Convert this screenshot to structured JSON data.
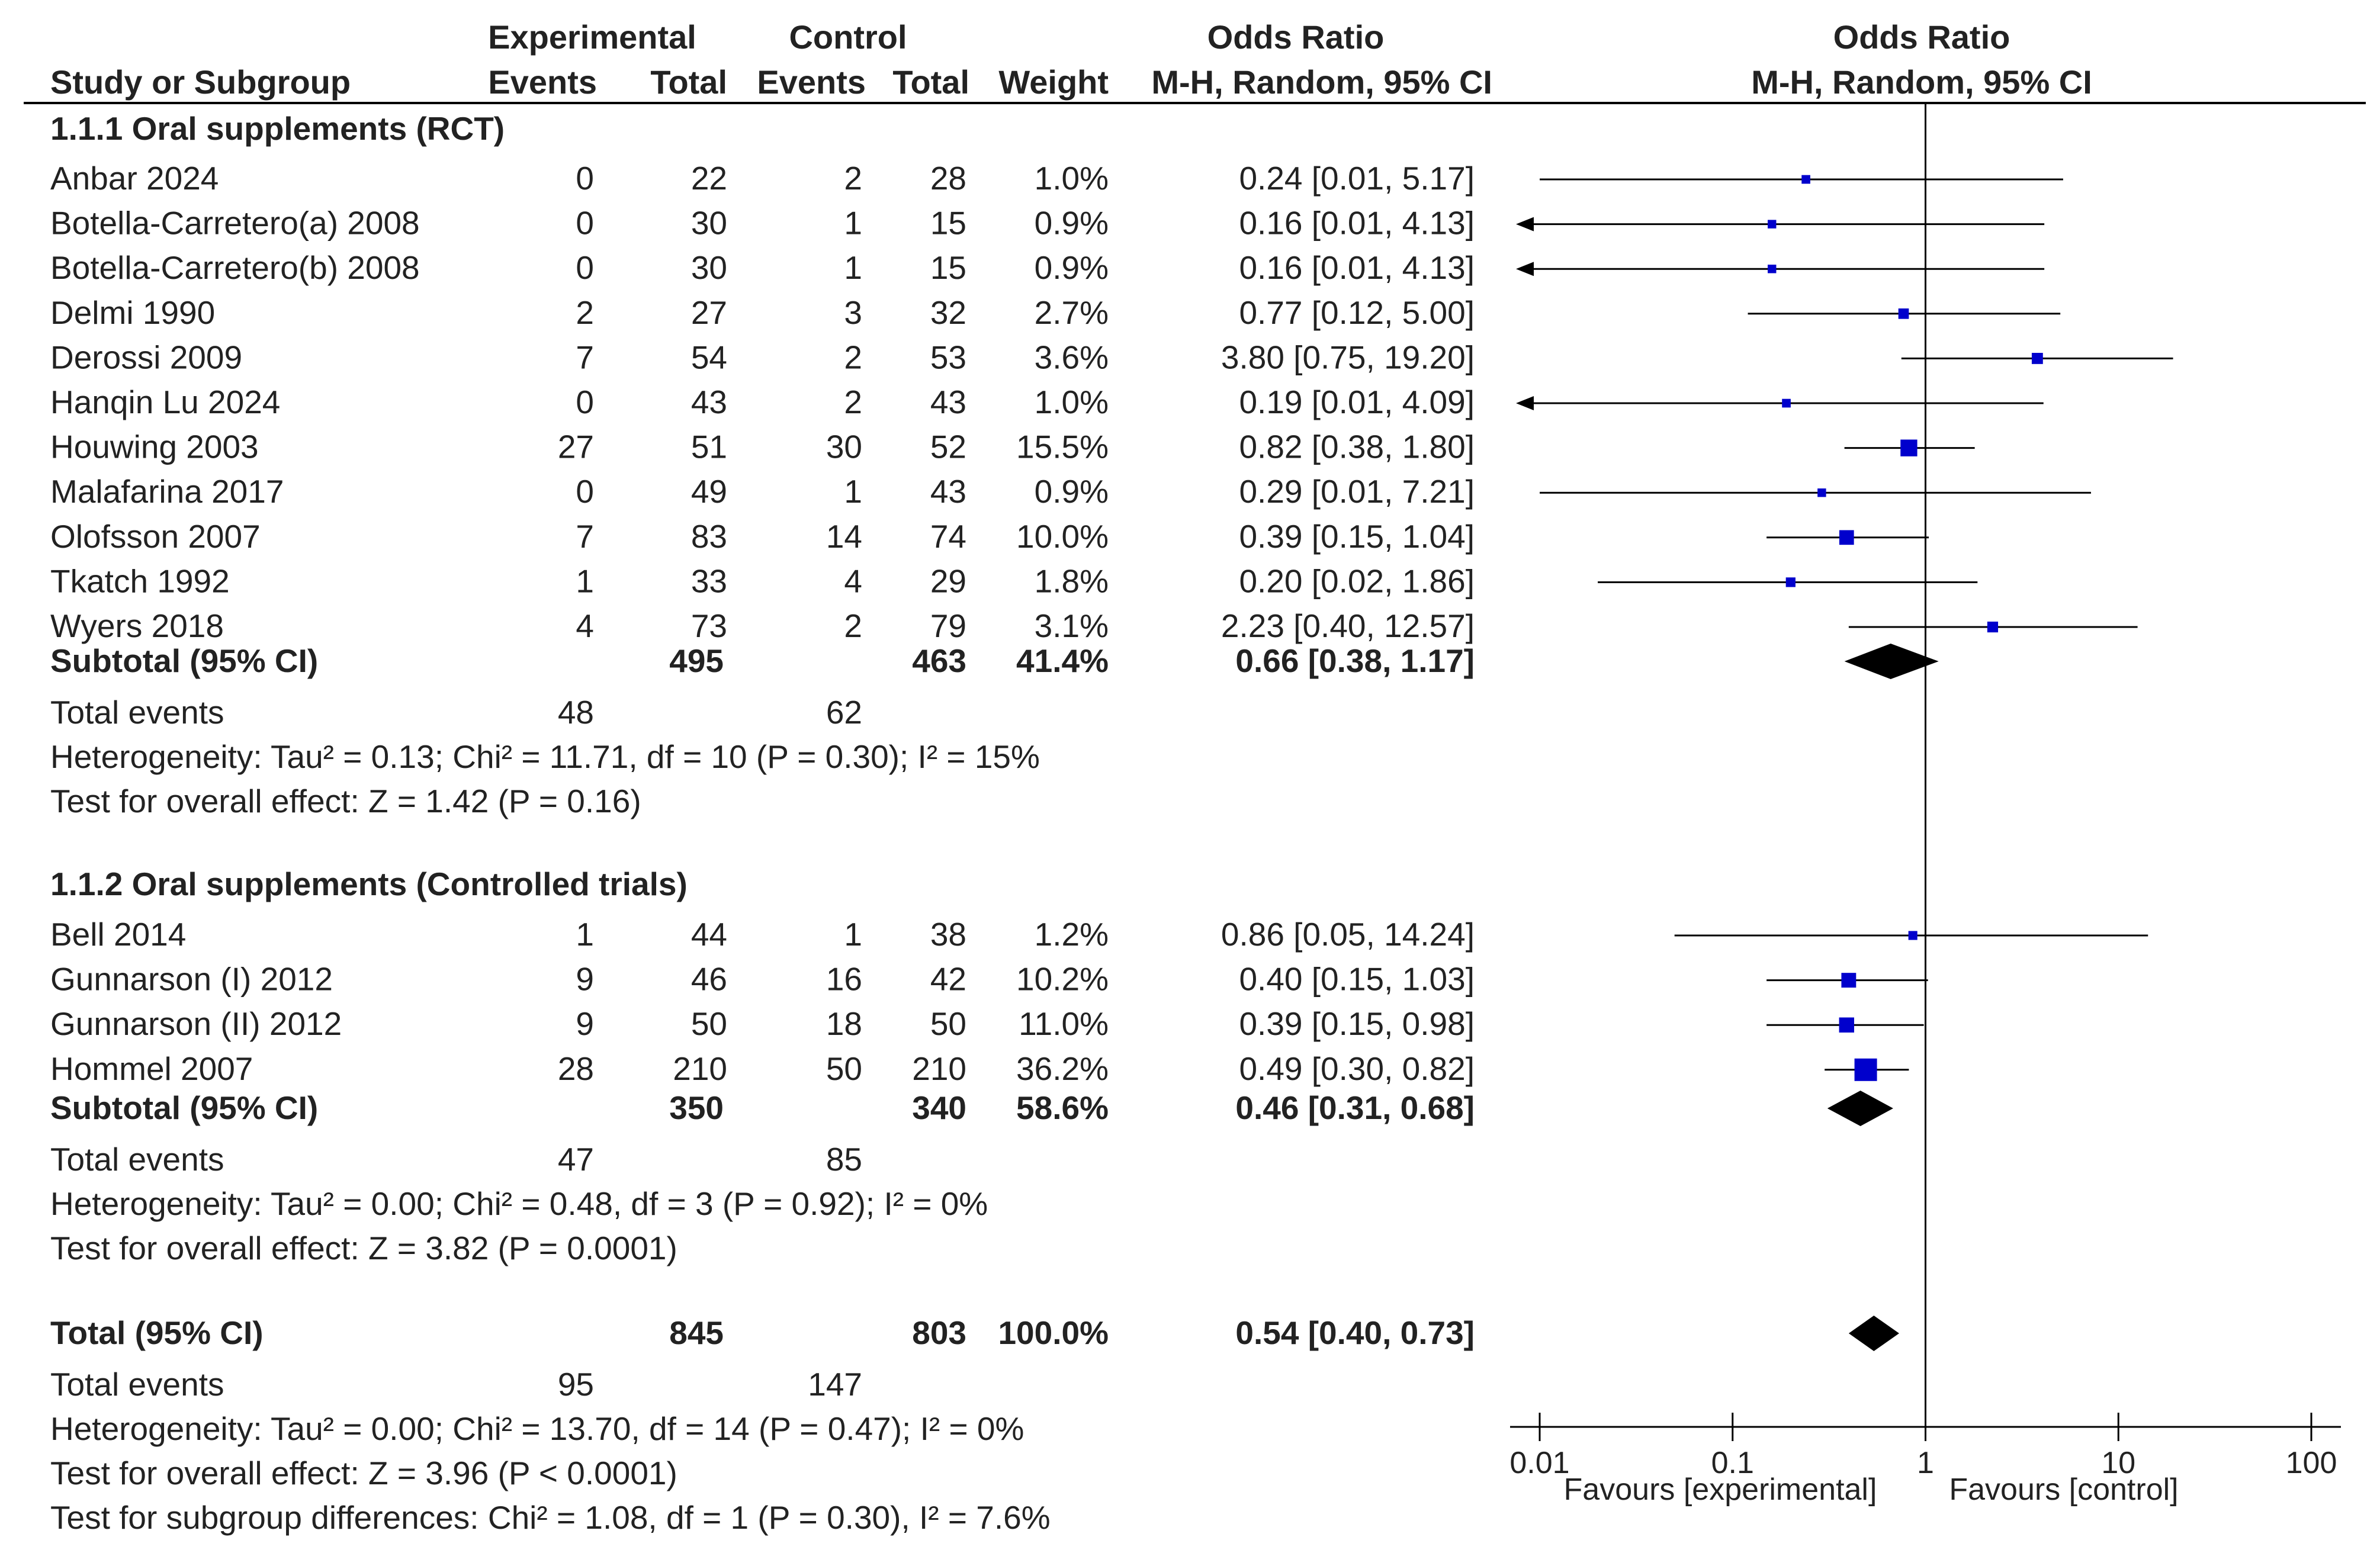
{
  "headers": {
    "experimental": "Experimental",
    "control": "Control",
    "odds_ratio_col": "Odds Ratio",
    "odds_ratio_plot": "Odds Ratio",
    "study": "Study or Subgroup",
    "events_exp": "Events",
    "total_exp": "Total",
    "events_ctl": "Events",
    "total_ctl": "Total",
    "weight": "Weight",
    "method_col": "M-H, Random, 95% CI",
    "method_plot": "M-H, Random, 95% CI"
  },
  "subgroups": [
    {
      "title": "1.1.1 Oral supplements (RCT)",
      "subtotal_label": "Subtotal (95% CI)",
      "subtotal": {
        "total_exp": "495",
        "total_ctl": "463",
        "weight": "41.4%",
        "ci_text": "0.66 [0.38, 1.17]",
        "or": 0.66,
        "lo": 0.38,
        "hi": 1.17
      },
      "total_events_label": "Total events",
      "total_events_exp": "48",
      "total_events_ctl": "62",
      "heterogeneity": "Heterogeneity: Tau² = 0.13; Chi² = 11.71, df = 10 (P = 0.30); I² = 15%",
      "overall_effect": "Test for overall effect: Z = 1.42 (P = 0.16)"
    },
    {
      "title": "1.1.2 Oral supplements (Controlled trials)",
      "subtotal_label": "Subtotal (95% CI)",
      "subtotal": {
        "total_exp": "350",
        "total_ctl": "340",
        "weight": "58.6%",
        "ci_text": "0.46 [0.31, 0.68]",
        "or": 0.46,
        "lo": 0.31,
        "hi": 0.68
      },
      "total_events_label": "Total events",
      "total_events_exp": "47",
      "total_events_ctl": "85",
      "heterogeneity": "Heterogeneity: Tau² = 0.00; Chi² = 0.48, df = 3 (P = 0.92); I² = 0%",
      "overall_effect": "Test for overall effect: Z = 3.82 (P = 0.0001)"
    }
  ],
  "overall": {
    "label": "Total (95% CI)",
    "total_exp": "845",
    "total_ctl": "803",
    "weight": "100.0%",
    "ci_text": "0.54 [0.40, 0.73]",
    "or": 0.54,
    "lo": 0.4,
    "hi": 0.73,
    "total_events_label": "Total events",
    "total_events_exp": "95",
    "total_events_ctl": "147",
    "heterogeneity": "Heterogeneity: Tau² = 0.00; Chi² = 13.70, df = 14 (P = 0.47); I² = 0%",
    "overall_effect": "Test for overall effect: Z = 3.96 (P < 0.0001)",
    "subgroup_diff": "Test for subgroup differences: Chi² = 1.08, df = 1 (P = 0.30), I² = 7.6%"
  },
  "axis": {
    "ticks": [
      0.01,
      0.1,
      1,
      10,
      100
    ],
    "tick_labels": [
      "0.01",
      "0.1",
      "1",
      "10",
      "100"
    ],
    "favours_left": "Favours [experimental]",
    "favours_right": "Favours [control]",
    "scale": "log"
  },
  "colors": {
    "study_marker": "#0000cc",
    "diamond": "#000000",
    "lines": "#000000"
  },
  "chart_data": {
    "type": "forest",
    "scale": "log",
    "xlim": [
      0.01,
      100
    ],
    "null_line": 1,
    "studies": [
      {
        "subgroup": 0,
        "name": "Anbar 2024",
        "events_exp": "0",
        "total_exp": "22",
        "events_ctl": "2",
        "total_ctl": "28",
        "weight": "1.0%",
        "ci_text": "0.24 [0.01, 5.17]",
        "or": 0.24,
        "lo": 0.01,
        "hi": 5.17
      },
      {
        "subgroup": 0,
        "name": "Botella-Carretero(a) 2008",
        "events_exp": "0",
        "total_exp": "30",
        "events_ctl": "1",
        "total_ctl": "15",
        "weight": "0.9%",
        "ci_text": "0.16 [0.01, 4.13]",
        "or": 0.16,
        "lo": 0.01,
        "hi": 4.13
      },
      {
        "subgroup": 0,
        "name": "Botella-Carretero(b) 2008",
        "events_exp": "0",
        "total_exp": "30",
        "events_ctl": "1",
        "total_ctl": "15",
        "weight": "0.9%",
        "ci_text": "0.16 [0.01, 4.13]",
        "or": 0.16,
        "lo": 0.01,
        "hi": 4.13
      },
      {
        "subgroup": 0,
        "name": "Delmi 1990",
        "events_exp": "2",
        "total_exp": "27",
        "events_ctl": "3",
        "total_ctl": "32",
        "weight": "2.7%",
        "ci_text": "0.77 [0.12, 5.00]",
        "or": 0.77,
        "lo": 0.12,
        "hi": 5.0
      },
      {
        "subgroup": 0,
        "name": "Derossi 2009",
        "events_exp": "7",
        "total_exp": "54",
        "events_ctl": "2",
        "total_ctl": "53",
        "weight": "3.6%",
        "ci_text": "3.80 [0.75, 19.20]",
        "or": 3.8,
        "lo": 0.75,
        "hi": 19.2
      },
      {
        "subgroup": 0,
        "name": "Hanqin Lu 2024",
        "events_exp": "0",
        "total_exp": "43",
        "events_ctl": "2",
        "total_ctl": "43",
        "weight": "1.0%",
        "ci_text": "0.19 [0.01, 4.09]",
        "or": 0.19,
        "lo": 0.01,
        "hi": 4.09
      },
      {
        "subgroup": 0,
        "name": "Houwing 2003",
        "events_exp": "27",
        "total_exp": "51",
        "events_ctl": "30",
        "total_ctl": "52",
        "weight": "15.5%",
        "ci_text": "0.82 [0.38, 1.80]",
        "or": 0.82,
        "lo": 0.38,
        "hi": 1.8
      },
      {
        "subgroup": 0,
        "name": "Malafarina 2017",
        "events_exp": "0",
        "total_exp": "49",
        "events_ctl": "1",
        "total_ctl": "43",
        "weight": "0.9%",
        "ci_text": "0.29 [0.01, 7.21]",
        "or": 0.29,
        "lo": 0.01,
        "hi": 7.21
      },
      {
        "subgroup": 0,
        "name": "Olofsson 2007",
        "events_exp": "7",
        "total_exp": "83",
        "events_ctl": "14",
        "total_ctl": "74",
        "weight": "10.0%",
        "ci_text": "0.39 [0.15, 1.04]",
        "or": 0.39,
        "lo": 0.15,
        "hi": 1.04
      },
      {
        "subgroup": 0,
        "name": "Tkatch 1992",
        "events_exp": "1",
        "total_exp": "33",
        "events_ctl": "4",
        "total_ctl": "29",
        "weight": "1.8%",
        "ci_text": "0.20 [0.02, 1.86]",
        "or": 0.2,
        "lo": 0.02,
        "hi": 1.86
      },
      {
        "subgroup": 0,
        "name": "Wyers 2018",
        "events_exp": "4",
        "total_exp": "73",
        "events_ctl": "2",
        "total_ctl": "79",
        "weight": "3.1%",
        "ci_text": "2.23 [0.40, 12.57]",
        "or": 2.23,
        "lo": 0.4,
        "hi": 12.57
      },
      {
        "subgroup": 1,
        "name": "Bell 2014",
        "events_exp": "1",
        "total_exp": "44",
        "events_ctl": "1",
        "total_ctl": "38",
        "weight": "1.2%",
        "ci_text": "0.86 [0.05, 14.24]",
        "or": 0.86,
        "lo": 0.05,
        "hi": 14.24
      },
      {
        "subgroup": 1,
        "name": "Gunnarson (I) 2012",
        "events_exp": "9",
        "total_exp": "46",
        "events_ctl": "16",
        "total_ctl": "42",
        "weight": "10.2%",
        "ci_text": "0.40 [0.15, 1.03]",
        "or": 0.4,
        "lo": 0.15,
        "hi": 1.03
      },
      {
        "subgroup": 1,
        "name": "Gunnarson (II) 2012",
        "events_exp": "9",
        "total_exp": "50",
        "events_ctl": "18",
        "total_ctl": "50",
        "weight": "11.0%",
        "ci_text": "0.39 [0.15, 0.98]",
        "or": 0.39,
        "lo": 0.15,
        "hi": 0.98
      },
      {
        "subgroup": 1,
        "name": "Hommel 2007",
        "events_exp": "28",
        "total_exp": "210",
        "events_ctl": "50",
        "total_ctl": "210",
        "weight": "36.2%",
        "ci_text": "0.49 [0.30, 0.82]",
        "or": 0.49,
        "lo": 0.3,
        "hi": 0.82
      }
    ]
  }
}
